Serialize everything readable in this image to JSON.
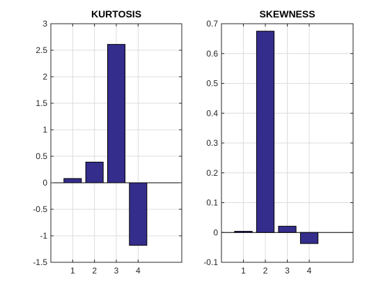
{
  "chart_data": [
    {
      "type": "bar",
      "title": "KURTOSIS",
      "xlabel": "",
      "ylabel": "",
      "categories": [
        "1",
        "2",
        "3",
        "4"
      ],
      "values": [
        0.08,
        0.39,
        2.61,
        -1.18
      ],
      "xlim": [
        0,
        6
      ],
      "ylim": [
        -1.5,
        3
      ],
      "yticks": [
        -1.5,
        -1,
        -0.5,
        0,
        0.5,
        1,
        1.5,
        2,
        2.5,
        3
      ],
      "ytick_labels": [
        "-1.5",
        "-1",
        "-0.5",
        "0",
        "0.5",
        "1",
        "1.5",
        "2",
        "2.5",
        "3"
      ],
      "grid": true,
      "bar_color": "#342D8C"
    },
    {
      "type": "bar",
      "title": "SKEWNESS",
      "xlabel": "",
      "ylabel": "",
      "categories": [
        "1",
        "2",
        "3",
        "4"
      ],
      "values": [
        0.004,
        0.675,
        0.021,
        -0.037
      ],
      "xlim": [
        0,
        6
      ],
      "ylim": [
        -0.1,
        0.7
      ],
      "yticks": [
        -0.1,
        0,
        0.1,
        0.2,
        0.3,
        0.4,
        0.5,
        0.6,
        0.7
      ],
      "ytick_labels": [
        "-0.1",
        "0",
        "0.1",
        "0.2",
        "0.3",
        "0.4",
        "0.5",
        "0.6",
        "0.7"
      ],
      "grid": true,
      "bar_color": "#342D8C"
    }
  ]
}
